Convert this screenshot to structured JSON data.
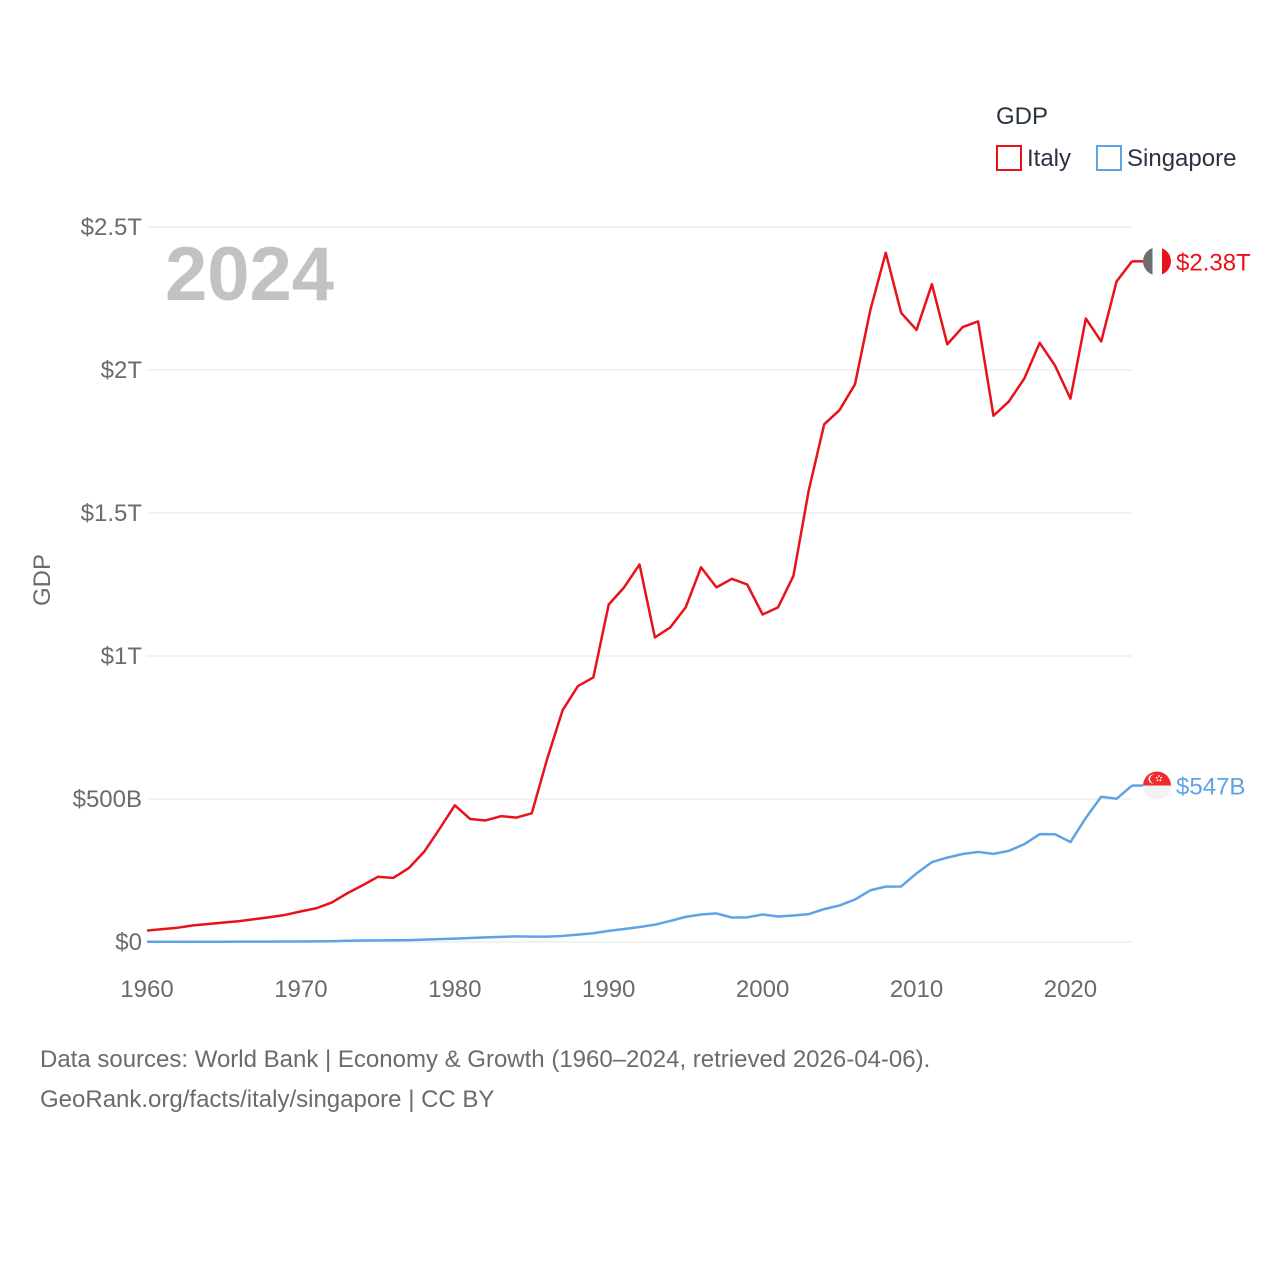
{
  "chart_data": {
    "type": "line",
    "title": "GDP",
    "ylabel": "GDP",
    "year_label": "2024",
    "x_ticks": [
      "1960",
      "1970",
      "1980",
      "1990",
      "2000",
      "2010",
      "2020"
    ],
    "x_range": [
      1960,
      2024
    ],
    "y_ticks": [
      {
        "value": 0,
        "label": "$0"
      },
      {
        "value": 500,
        "label": "$500B"
      },
      {
        "value": 1000,
        "label": "$1T"
      },
      {
        "value": 1500,
        "label": "$1.5T"
      },
      {
        "value": 2000,
        "label": "$2T"
      },
      {
        "value": 2500,
        "label": "$2.5T"
      }
    ],
    "ylim": [
      0,
      2500
    ],
    "units": "billions USD",
    "grid": true,
    "legend_position": "top-right",
    "x": [
      1960,
      1961,
      1962,
      1963,
      1964,
      1965,
      1966,
      1967,
      1968,
      1969,
      1970,
      1971,
      1972,
      1973,
      1974,
      1975,
      1976,
      1977,
      1978,
      1979,
      1980,
      1981,
      1982,
      1983,
      1984,
      1985,
      1986,
      1987,
      1988,
      1989,
      1990,
      1991,
      1992,
      1993,
      1994,
      1995,
      1996,
      1997,
      1998,
      1999,
      2000,
      2001,
      2002,
      2003,
      2004,
      2005,
      2006,
      2007,
      2008,
      2009,
      2010,
      2011,
      2012,
      2013,
      2014,
      2015,
      2016,
      2017,
      2018,
      2019,
      2020,
      2021,
      2022,
      2023,
      2024
    ],
    "series": [
      {
        "name": "Italy",
        "color": "#e8121a",
        "end_label": "$2.38T",
        "flag": "italy-flag",
        "values": [
          40,
          45,
          50,
          58,
          63,
          68,
          73,
          80,
          87,
          95,
          107,
          118,
          138,
          170,
          198,
          228,
          224,
          258,
          315,
          395,
          478,
          430,
          425,
          440,
          435,
          450,
          640,
          810,
          895,
          925,
          1180,
          1240,
          1320,
          1065,
          1100,
          1170,
          1310,
          1240,
          1270,
          1250,
          1145,
          1170,
          1280,
          1580,
          1810,
          1860,
          1950,
          2210,
          2410,
          2200,
          2140,
          2300,
          2090,
          2150,
          2170,
          1840,
          1890,
          1970,
          2095,
          2015,
          1900,
          2180,
          2100,
          2310,
          2380
        ]
      },
      {
        "name": "Singapore",
        "color": "#5fa3e4",
        "end_label": "$547B",
        "flag": "singapore-flag",
        "values": [
          0.7,
          0.8,
          0.9,
          1.0,
          1.0,
          1.0,
          1.2,
          1.3,
          1.5,
          1.7,
          1.9,
          2.3,
          2.8,
          4.3,
          5.2,
          5.7,
          6,
          6.7,
          8.1,
          10,
          11.9,
          14,
          16,
          17.8,
          19.5,
          19,
          18.9,
          21.2,
          25.9,
          30.6,
          38.9,
          45.5,
          52.2,
          60.6,
          73.7,
          87.9,
          96.3,
          100,
          85.7,
          86.3,
          96,
          89.3,
          92.5,
          97.6,
          115,
          127.8,
          148.6,
          180.9,
          193.6,
          194.2,
          239.8,
          279.4,
          295.1,
          307.6,
          314.9,
          308,
          318.8,
          341.9,
          377,
          376.9,
          349.5,
          434.1,
          508,
          501,
          547
        ]
      }
    ]
  },
  "footer": {
    "line1": "Data sources: World Bank | Economy & Growth (1960–2024, retrieved 2026-04-06).",
    "line2": "GeoRank.org/facts/italy/singapore | CC BY"
  }
}
